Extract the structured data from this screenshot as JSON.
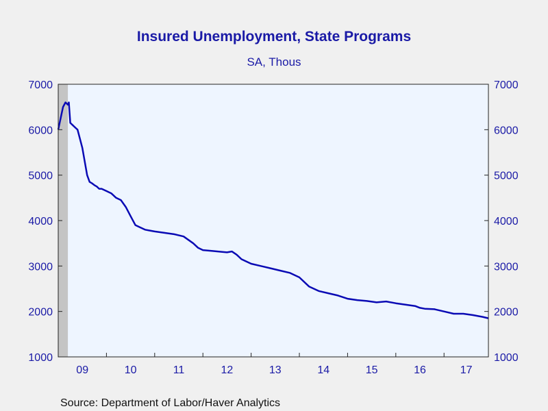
{
  "chart_data": {
    "type": "line",
    "title": "Insured Unemployment, State Programs",
    "subtitle": "SA, Thous",
    "source": "Source:  Department of Labor/Haver Analytics",
    "ylim": [
      1000,
      7000
    ],
    "y_ticks": [
      7000,
      6000,
      5000,
      4000,
      3000,
      2000,
      1000
    ],
    "y_tick_labels": [
      "7000",
      "6000",
      "5000",
      "4000",
      "3000",
      "2000",
      "1000"
    ],
    "xlim": [
      2009.0,
      2017.92
    ],
    "x_ticks": [
      {
        "label": "09",
        "year": 2009
      },
      {
        "label": "10",
        "year": 2010
      },
      {
        "label": "11",
        "year": 2011
      },
      {
        "label": "12",
        "year": 2012
      },
      {
        "label": "13",
        "year": 2013
      },
      {
        "label": "14",
        "year": 2014
      },
      {
        "label": "15",
        "year": 2015
      },
      {
        "label": "16",
        "year": 2016
      },
      {
        "label": "17",
        "year": 2017
      }
    ],
    "recession_shading": [
      [
        2009.0,
        2009.2
      ]
    ],
    "grid": false,
    "legend": "none",
    "colors": {
      "line": "#0a0ab4",
      "plot_bg": "#eef5ff",
      "page_bg": "#f0f0f0",
      "text": "#1a1aa6",
      "recession": "#c4c4c4"
    },
    "series": [
      {
        "name": "",
        "x": [
          2009.0,
          2009.05,
          2009.1,
          2009.15,
          2009.2,
          2009.22,
          2009.25,
          2009.3,
          2009.35,
          2009.4,
          2009.45,
          2009.5,
          2009.55,
          2009.6,
          2009.65,
          2009.7,
          2009.75,
          2009.8,
          2009.85,
          2009.9,
          2010.0,
          2010.1,
          2010.2,
          2010.3,
          2010.4,
          2010.5,
          2010.6,
          2010.7,
          2010.8,
          2010.9,
          2011.0,
          2011.2,
          2011.4,
          2011.6,
          2011.8,
          2011.9,
          2012.0,
          2012.2,
          2012.4,
          2012.5,
          2012.6,
          2012.7,
          2012.8,
          2013.0,
          2013.2,
          2013.4,
          2013.6,
          2013.8,
          2014.0,
          2014.2,
          2014.4,
          2014.6,
          2014.8,
          2015.0,
          2015.2,
          2015.4,
          2015.6,
          2015.8,
          2016.0,
          2016.2,
          2016.4,
          2016.5,
          2016.6,
          2016.8,
          2017.0,
          2017.2,
          2017.4,
          2017.6,
          2017.8,
          2017.92
        ],
        "values": [
          6000,
          6250,
          6500,
          6600,
          6550,
          6600,
          6150,
          6100,
          6050,
          6000,
          5800,
          5600,
          5300,
          5000,
          4850,
          4820,
          4780,
          4750,
          4700,
          4700,
          4650,
          4600,
          4500,
          4450,
          4300,
          4100,
          3900,
          3850,
          3800,
          3780,
          3760,
          3730,
          3700,
          3650,
          3500,
          3400,
          3350,
          3330,
          3310,
          3300,
          3320,
          3250,
          3150,
          3050,
          3000,
          2950,
          2900,
          2850,
          2750,
          2550,
          2450,
          2400,
          2350,
          2280,
          2250,
          2230,
          2200,
          2220,
          2180,
          2150,
          2120,
          2080,
          2060,
          2050,
          2000,
          1950,
          1950,
          1920,
          1880,
          1850
        ]
      }
    ]
  }
}
